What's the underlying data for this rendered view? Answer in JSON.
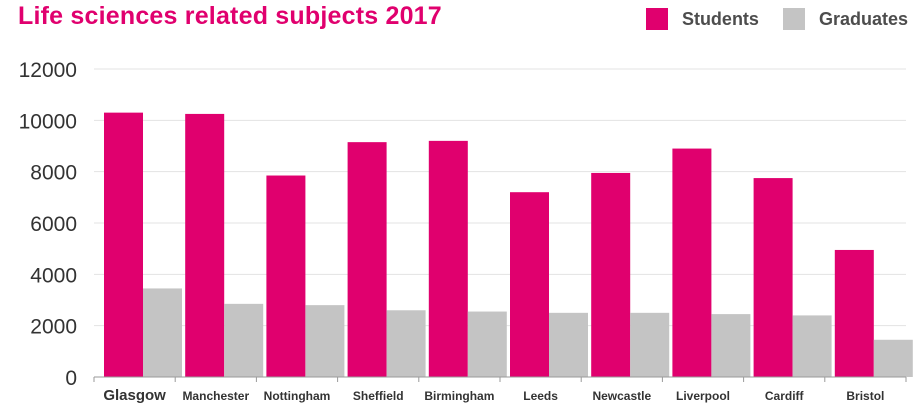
{
  "colors": {
    "students": "#e0006e",
    "graduates": "#c4c4c4",
    "title": "#e0006e",
    "highlight_label": "#e0006e"
  },
  "chart_data": {
    "type": "bar",
    "title": "Life sciences related subjects 2017",
    "xlabel": "",
    "ylabel": "",
    "ylim": [
      0,
      12000
    ],
    "yticks": [
      0,
      2000,
      4000,
      6000,
      8000,
      10000,
      12000
    ],
    "grid": true,
    "legend_position": "top-right",
    "highlighted_category": "Glasgow",
    "categories": [
      "Glasgow",
      "Manchester",
      "Nottingham",
      "Sheffield",
      "Birmingham",
      "Leeds",
      "Newcastle",
      "Liverpool",
      "Cardiff",
      "Bristol"
    ],
    "series": [
      {
        "name": "Students",
        "values": [
          10300,
          10250,
          7850,
          9150,
          9200,
          7200,
          7950,
          8900,
          7750,
          4950
        ]
      },
      {
        "name": "Graduates",
        "values": [
          3450,
          2850,
          2800,
          2600,
          2550,
          2500,
          2500,
          2450,
          2400,
          1450
        ]
      }
    ]
  }
}
